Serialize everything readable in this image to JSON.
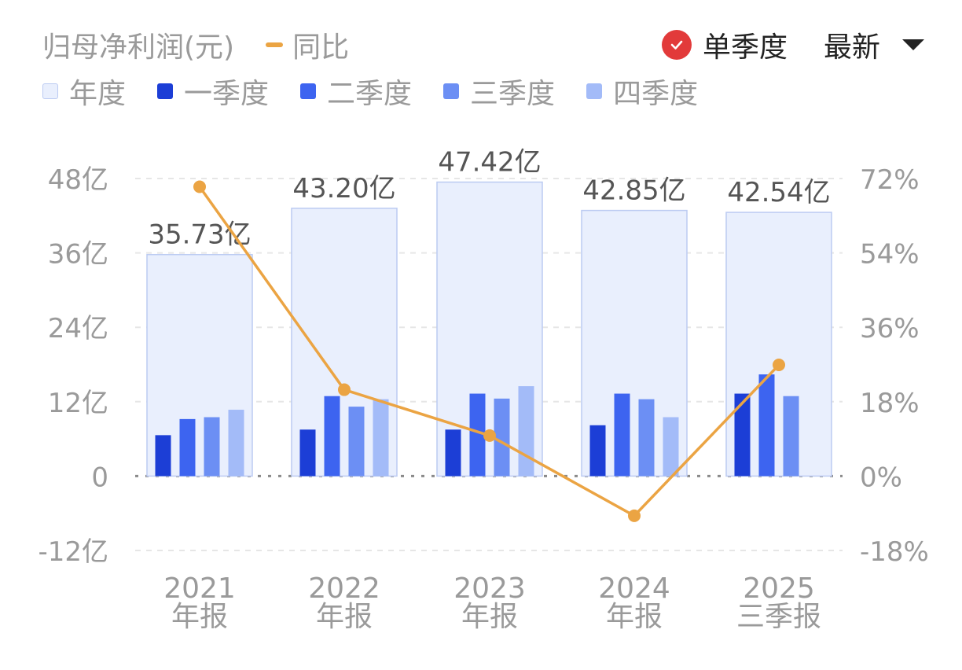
{
  "header": {
    "title": "归母净利润(元)",
    "yoy_label": "同比",
    "single_quarter_label": "单季度",
    "sort_label": "最新"
  },
  "legend": [
    {
      "label": "年度",
      "color": "#e9effd"
    },
    {
      "label": "一季度",
      "color": "#1c3ed6"
    },
    {
      "label": "二季度",
      "color": "#3d64f0"
    },
    {
      "label": "三季度",
      "color": "#6c8ff4"
    },
    {
      "label": "四季度",
      "color": "#a3bbf8"
    }
  ],
  "colors": {
    "annual_fill": "#e9effd",
    "annual_stroke": "#bccbf2",
    "yoy_line": "#eba443",
    "grid": "#e6e6e6",
    "zero_line": "#8a8a8a",
    "tick_text": "#9a9a9a",
    "value_label": "#555555"
  },
  "chart_data": {
    "type": "bar",
    "categories": [
      [
        "2021",
        "年报"
      ],
      [
        "2022",
        "年报"
      ],
      [
        "2023",
        "年报"
      ],
      [
        "2024",
        "年报"
      ],
      [
        "2025",
        "三季报"
      ]
    ],
    "annual_values": [
      35.73,
      43.2,
      47.42,
      42.85,
      42.54
    ],
    "annual_labels": [
      "35.73亿",
      "43.20亿",
      "47.42亿",
      "42.85亿",
      "42.54亿"
    ],
    "series": [
      {
        "name": "一季度",
        "values": [
          6.6,
          7.5,
          7.5,
          8.2,
          13.3
        ]
      },
      {
        "name": "二季度",
        "values": [
          9.2,
          12.9,
          13.3,
          13.3,
          16.4
        ]
      },
      {
        "name": "三季度",
        "values": [
          9.5,
          11.2,
          12.5,
          12.4,
          12.9
        ]
      },
      {
        "name": "四季度",
        "values": [
          10.7,
          12.4,
          14.5,
          9.5,
          null
        ]
      }
    ],
    "yoy": {
      "name": "同比",
      "values": [
        70.0,
        20.9,
        9.8,
        -9.6,
        26.9
      ]
    },
    "y_left": {
      "min": -12,
      "max": 48,
      "ticks": [
        48,
        36,
        24,
        12,
        0,
        -12
      ],
      "tick_labels": [
        "48亿",
        "36亿",
        "24亿",
        "12亿",
        "0",
        "-12亿"
      ]
    },
    "y_right": {
      "min": -18,
      "max": 72,
      "ticks": [
        72,
        54,
        36,
        18,
        0,
        -18
      ],
      "tick_labels": [
        "72%",
        "54%",
        "36%",
        "18%",
        "0%",
        "-18%"
      ]
    },
    "grid": true
  }
}
